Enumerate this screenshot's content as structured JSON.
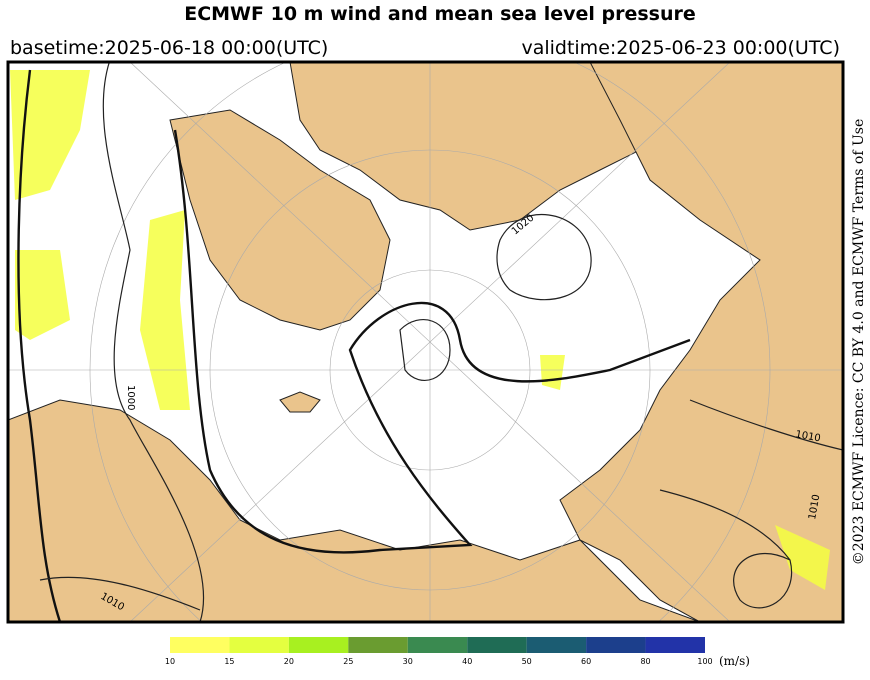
{
  "title": "ECMWF 10 m wind and mean sea level pressure",
  "basetime": "basetime:2025-06-18 00:00(UTC)",
  "validtime": "validtime:2025-06-23 00:00(UTC)",
  "licence": "©2023 ECMWF Licence: CC BY 4.0 and ECMWF Terms of Use",
  "isobar_labels": [
    "1000",
    "1010",
    "1010",
    "1020",
    "1010"
  ],
  "colorbar": {
    "ticks": [
      10,
      15,
      20,
      25,
      30,
      40,
      50,
      60,
      80,
      100
    ],
    "colors": [
      "#ffff60",
      "#e4ff40",
      "#a8f020",
      "#6a9c30",
      "#3a8a50",
      "#1f6c55",
      "#1b5c72",
      "#1c3f8c",
      "#2233a8"
    ],
    "unit": "(m/s)"
  }
}
